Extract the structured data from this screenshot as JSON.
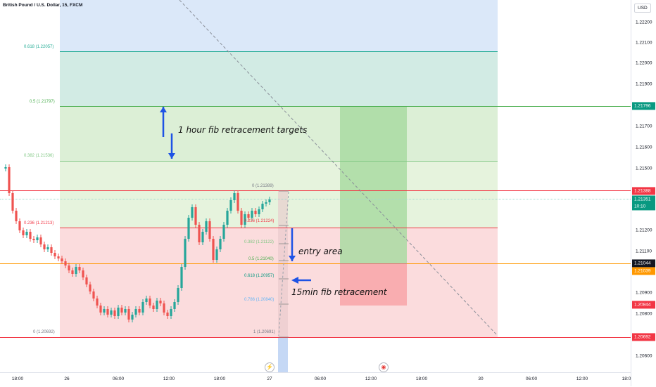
{
  "symbol": "British Pound / U.S. Dollar, 15, FXCM",
  "currency_button": "USD",
  "fib_1h_levels": [
    {
      "label": "0.618 (1.22057)",
      "color": "#22ab94"
    },
    {
      "label": "0.5 (1.21797)",
      "color": "#4caf50"
    },
    {
      "label": "0.382 (1.21536)",
      "color": "#81c784"
    },
    {
      "label": "0.236 (1.21213)",
      "color": "#f23645"
    },
    {
      "label": "0 (1.20692)",
      "color": "#787b86"
    }
  ],
  "fib_15m_levels": [
    {
      "label": "0 (1.21389)",
      "color": "#787b86"
    },
    {
      "label": "0.236 (1.21224)",
      "color": "#f23645"
    },
    {
      "label": "0.382 (1.21122)",
      "color": "#81c784"
    },
    {
      "label": "0.5 (1.21040)",
      "color": "#4caf50"
    },
    {
      "label": "0.618 (1.20957)",
      "color": "#089981"
    },
    {
      "label": "0.786 (1.20840)",
      "color": "#64b5f6"
    },
    {
      "label": "1 (1.20691)",
      "color": "#787b86"
    }
  ],
  "annotations": {
    "targets": "1 hour fib retracement targets",
    "entry": "entry area",
    "fib15": "15min fib retracement"
  },
  "price_ticks": [
    "1.22200",
    "1.22100",
    "1.22000",
    "1.21900",
    "1.21700",
    "1.21600",
    "1.21500",
    "1.21200",
    "1.21100",
    "1.20900",
    "1.20800",
    "1.20600"
  ],
  "price_badges": [
    {
      "text": "1.21796",
      "color": "#089981"
    },
    {
      "text": "1.21388",
      "color": "#f23645"
    },
    {
      "text": "1.21351",
      "color": "#089981"
    },
    {
      "text": "10:10",
      "color": "#089981"
    },
    {
      "text": "1.21044",
      "color": "#131722"
    },
    {
      "text": "1.21039",
      "color": "#ff9800"
    },
    {
      "text": "1.20844",
      "color": "#f23645"
    },
    {
      "text": "1.20692",
      "color": "#f23645"
    }
  ],
  "time_labels": [
    "18:00",
    "26",
    "06:00",
    "12:00",
    "18:00",
    "27",
    "06:00",
    "12:00",
    "18:00",
    "30",
    "06:00",
    "12:00",
    "18:0"
  ],
  "event_icons": {
    "lightning": "lightning-icon",
    "flag": "flag-icon"
  },
  "colors": {
    "up": "#26a69a",
    "down": "#ef5350",
    "blue_zone": "#d6e6f8",
    "green_zone": "#d4edda",
    "red_zone": "#fad4d6",
    "teal_zone": "#cfe9e2",
    "red_line": "#f23645",
    "orange_line": "#ff9800",
    "green_line": "#4caf50"
  }
}
